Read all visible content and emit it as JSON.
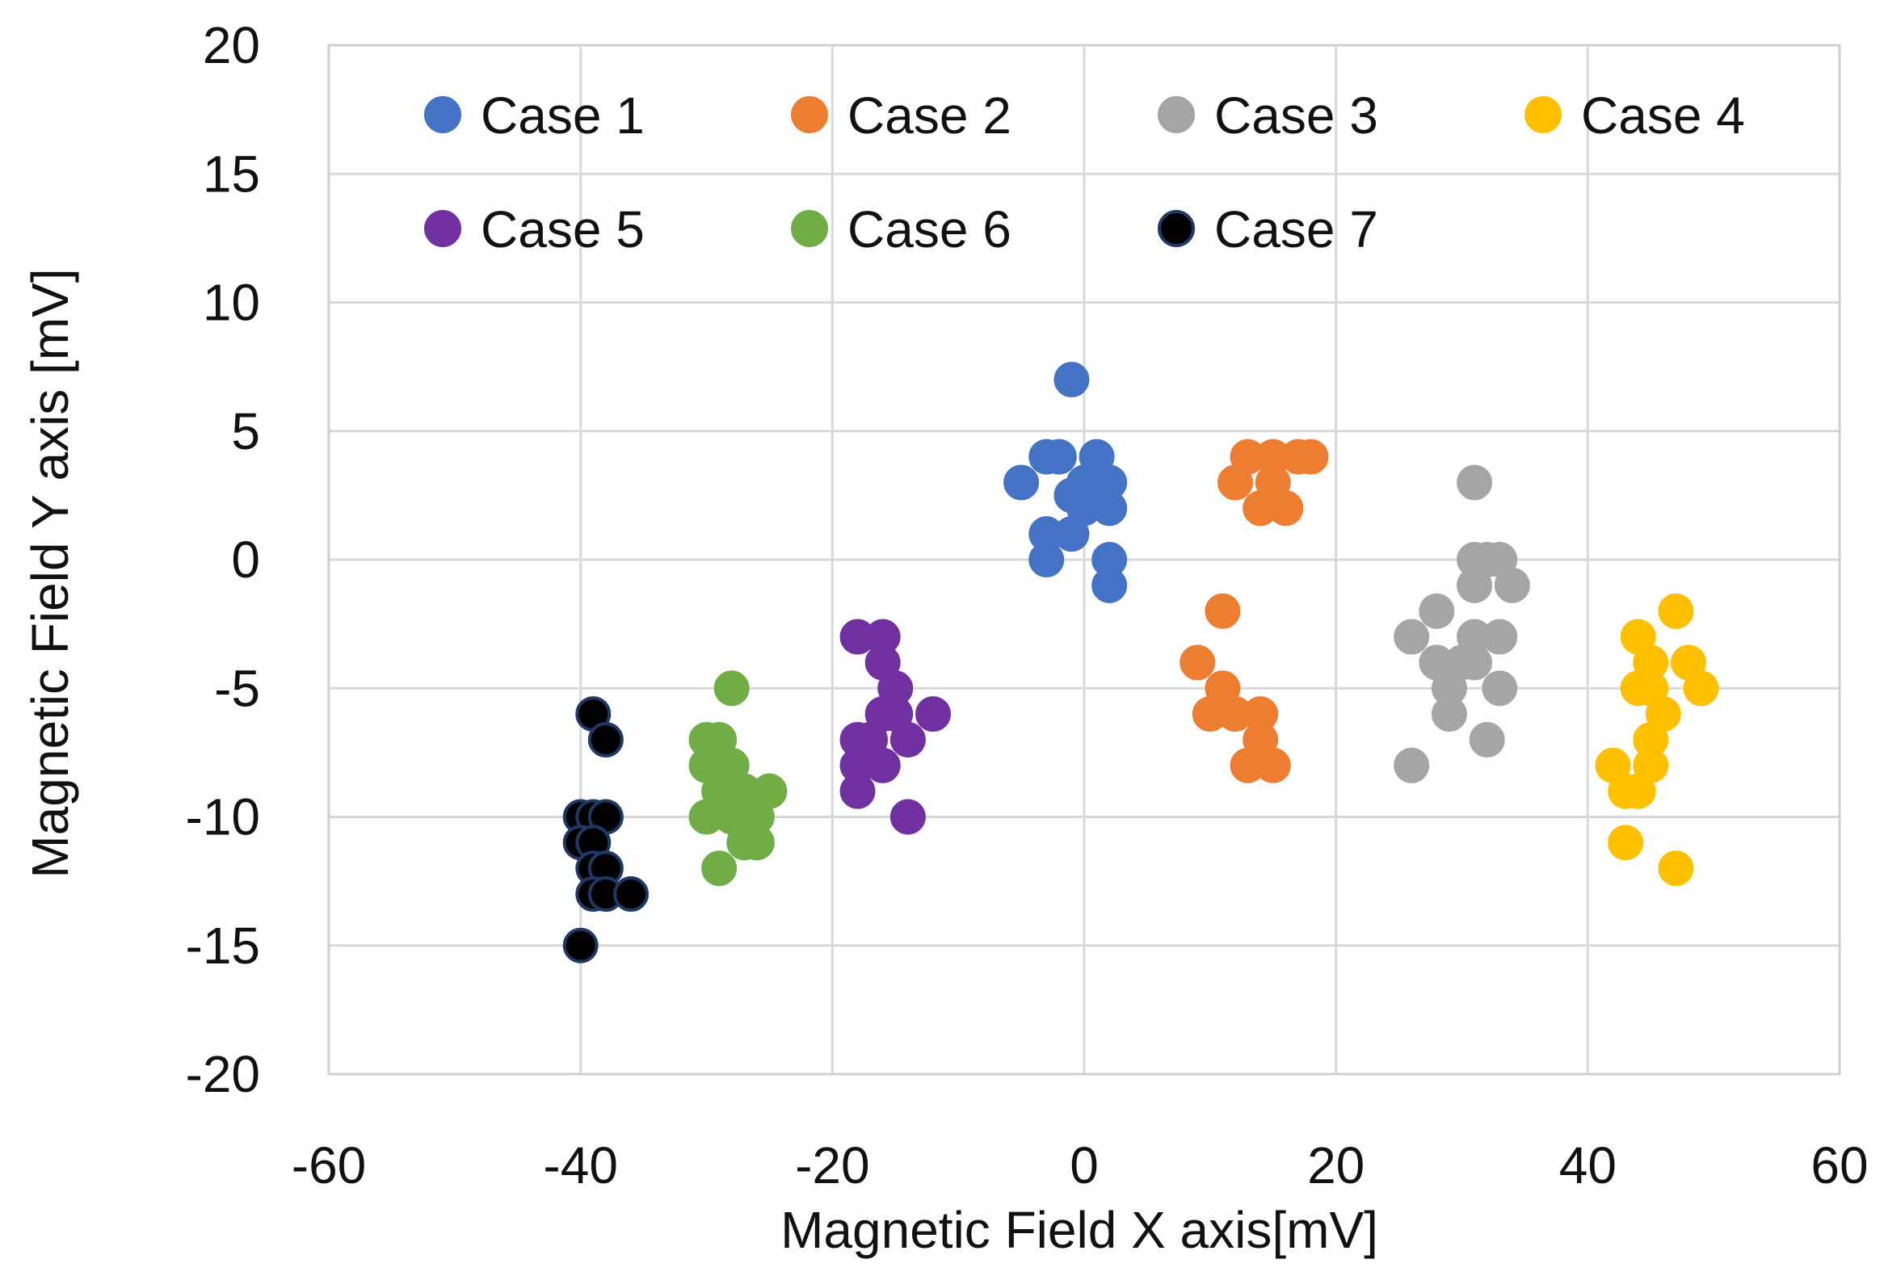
{
  "chart_data": {
    "type": "scatter",
    "title": "",
    "xlabel": "Magnetic Field X axis[mV]",
    "ylabel": "Magnetic Field Y axis [mV]",
    "xlim": [
      -60,
      60
    ],
    "ylim": [
      -20,
      20
    ],
    "xticks": [
      -60,
      -40,
      -20,
      0,
      20,
      40,
      60
    ],
    "yticks": [
      -20,
      -15,
      -10,
      -5,
      0,
      5,
      10,
      15,
      20
    ],
    "xtick_labels": [
      "-60",
      "-40",
      "-20",
      "0",
      "20",
      "40",
      "60"
    ],
    "ytick_labels": [
      "-20",
      "-15",
      "-10",
      "-5",
      "0",
      "5",
      "10",
      "15",
      "20"
    ],
    "grid": true,
    "legend_position": "top",
    "series": [
      {
        "name": "Case 1",
        "color": "#4472C4",
        "edge": "#4472C4",
        "points": [
          [
            -1,
            7
          ],
          [
            -3,
            4
          ],
          [
            -2,
            4
          ],
          [
            1,
            4
          ],
          [
            -5,
            3
          ],
          [
            0,
            3
          ],
          [
            2,
            3
          ],
          [
            -1,
            2.5
          ],
          [
            1,
            2.5
          ],
          [
            0,
            2
          ],
          [
            2,
            2
          ],
          [
            -3,
            1
          ],
          [
            -1,
            1
          ],
          [
            -3,
            0
          ],
          [
            2,
            0
          ],
          [
            2,
            -1
          ]
        ]
      },
      {
        "name": "Case 2",
        "color": "#ED7D31",
        "edge": "#ED7D31",
        "points": [
          [
            13,
            4
          ],
          [
            15,
            4
          ],
          [
            17,
            4
          ],
          [
            18,
            4
          ],
          [
            12,
            3
          ],
          [
            15,
            3
          ],
          [
            14,
            2
          ],
          [
            16,
            2
          ],
          [
            11,
            -2
          ],
          [
            9,
            -4
          ],
          [
            11,
            -5
          ],
          [
            10,
            -6
          ],
          [
            12,
            -6
          ],
          [
            14,
            -6
          ],
          [
            14,
            -7
          ],
          [
            13,
            -8
          ],
          [
            15,
            -8
          ]
        ]
      },
      {
        "name": "Case 3",
        "color": "#A5A5A5",
        "edge": "#A5A5A5",
        "points": [
          [
            31,
            3
          ],
          [
            31,
            0
          ],
          [
            32,
            0
          ],
          [
            33,
            0
          ],
          [
            31,
            -1
          ],
          [
            34,
            -1
          ],
          [
            28,
            -2
          ],
          [
            26,
            -3
          ],
          [
            31,
            -3
          ],
          [
            33,
            -3
          ],
          [
            28,
            -4
          ],
          [
            30,
            -4
          ],
          [
            31,
            -4
          ],
          [
            29,
            -5
          ],
          [
            33,
            -5
          ],
          [
            29,
            -6
          ],
          [
            32,
            -7
          ],
          [
            26,
            -8
          ]
        ]
      },
      {
        "name": "Case 4",
        "color": "#FFC000",
        "edge": "#FFC000",
        "points": [
          [
            47,
            -2
          ],
          [
            44,
            -3
          ],
          [
            45,
            -4
          ],
          [
            48,
            -4
          ],
          [
            44,
            -5
          ],
          [
            45,
            -5
          ],
          [
            49,
            -5
          ],
          [
            46,
            -6
          ],
          [
            45,
            -7
          ],
          [
            42,
            -8
          ],
          [
            45,
            -8
          ],
          [
            43,
            -9
          ],
          [
            44,
            -9
          ],
          [
            43,
            -11
          ],
          [
            47,
            -12
          ]
        ]
      },
      {
        "name": "Case 5",
        "color": "#7030A0",
        "edge": "#7030A0",
        "points": [
          [
            -18,
            -3
          ],
          [
            -16,
            -3
          ],
          [
            -16,
            -4
          ],
          [
            -15,
            -5
          ],
          [
            -16,
            -6
          ],
          [
            -15,
            -6
          ],
          [
            -12,
            -6
          ],
          [
            -18,
            -7
          ],
          [
            -17,
            -7
          ],
          [
            -14,
            -7
          ],
          [
            -18,
            -8
          ],
          [
            -16,
            -8
          ],
          [
            -18,
            -9
          ],
          [
            -14,
            -10
          ]
        ]
      },
      {
        "name": "Case 6",
        "color": "#70AD47",
        "edge": "#70AD47",
        "points": [
          [
            -28,
            -5
          ],
          [
            -30,
            -7
          ],
          [
            -29,
            -7
          ],
          [
            -30,
            -8
          ],
          [
            -28,
            -8
          ],
          [
            -29,
            -9
          ],
          [
            -27,
            -9
          ],
          [
            -25,
            -9
          ],
          [
            -28,
            -10
          ],
          [
            -26,
            -10
          ],
          [
            -30,
            -10
          ],
          [
            -27,
            -11
          ],
          [
            -26,
            -11
          ],
          [
            -29,
            -12
          ]
        ]
      },
      {
        "name": "Case 7",
        "color": "#000000",
        "edge": "#203864",
        "points": [
          [
            -39,
            -6
          ],
          [
            -38,
            -7
          ],
          [
            -40,
            -10
          ],
          [
            -39,
            -10
          ],
          [
            -38,
            -10
          ],
          [
            -40,
            -11
          ],
          [
            -39,
            -11
          ],
          [
            -39,
            -12
          ],
          [
            -38,
            -12
          ],
          [
            -39,
            -13
          ],
          [
            -38,
            -13
          ],
          [
            -36,
            -13
          ],
          [
            -40,
            -15
          ]
        ]
      }
    ]
  }
}
